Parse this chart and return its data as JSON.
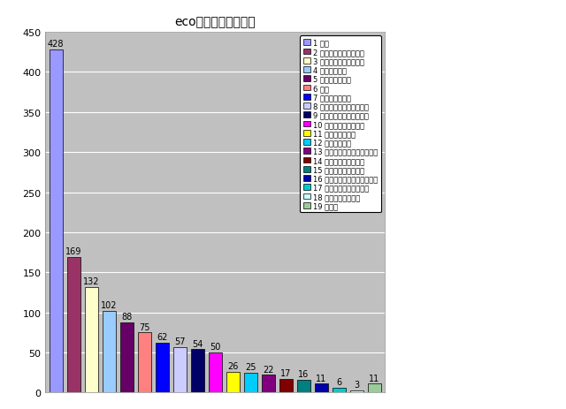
{
  "title": "ecoキッチンアイデア",
  "values": [
    428,
    169,
    132,
    102,
    88,
    75,
    62,
    57,
    54,
    50,
    26,
    25,
    22,
    17,
    16,
    11,
    6,
    3,
    11
  ],
  "colors": [
    "#9999FF",
    "#993366",
    "#FFFFCC",
    "#99CCFF",
    "#660066",
    "#FF8080",
    "#0000FF",
    "#CCCCFF",
    "#000066",
    "#FF00FF",
    "#FFFF00",
    "#00CCFF",
    "#800080",
    "#800000",
    "#008080",
    "#0000AA",
    "#00CCCC",
    "#CCFFFF",
    "#99CC99"
  ],
  "legend_labels": [
    "1 節水",
    "2 洗剤の使用量を減らす",
    "3 ガスの使用量を減らす",
    "4 ゴミを減らす",
    "5 ゴミを分別する",
    "6 節電",
    "7 生ゴミを減らす",
    "8 冷蔵庫の開閉に注意する",
    "9 まとめ調理／まとめ洗い",
    "10 排水をきれいにする",
    "11 油を再利用する",
    "12 残さず食べる",
    "13 キッチンをまめに掛除する",
    "14 野菜の皮まで食べる",
    "15 食材ローテーション",
    "16 お米のとぎ汁を再利用する",
    "17 野菜やハーブを育てる",
    "18 エコバッグを使う",
    "19 その他"
  ],
  "ylim": [
    0,
    450
  ],
  "yticks": [
    0,
    50,
    100,
    150,
    200,
    250,
    300,
    350,
    400,
    450
  ],
  "fig_bg_color": "#FFFFFF",
  "plot_bg_color": "#C0C0C0",
  "bar_edge_color": "#000000",
  "grid_color": "#FFFFFF"
}
